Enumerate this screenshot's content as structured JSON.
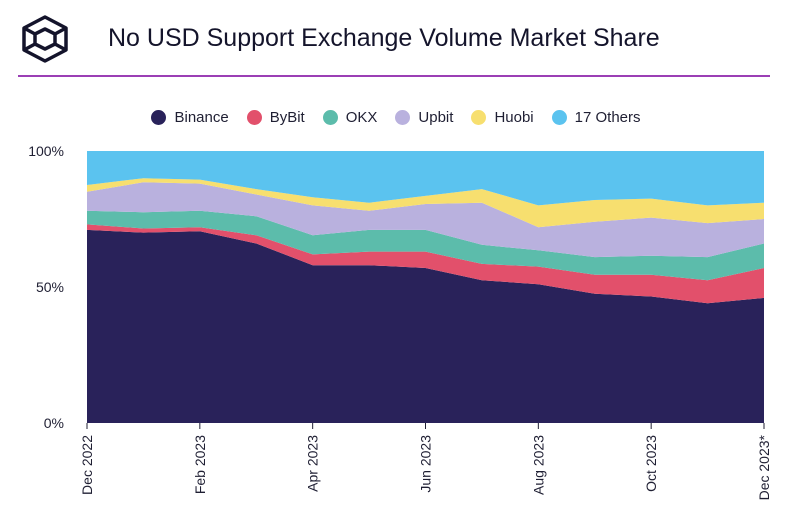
{
  "header": {
    "title": "No USD Support Exchange Volume Market Share",
    "logo_icon": "cube-logo-icon"
  },
  "colors": {
    "accent_line": "#9b3fb5"
  },
  "chart_data": {
    "type": "area",
    "stacked": true,
    "title": "No USD Support Exchange Volume Market Share",
    "x": [
      "Dec 2022",
      "Jan 2023",
      "Feb 2023",
      "Mar 2023",
      "Apr 2023",
      "May 2023",
      "Jun 2023",
      "Jul 2023",
      "Aug 2023",
      "Sep 2023",
      "Oct 2023",
      "Nov 2023",
      "Dec 2023*"
    ],
    "x_tick_labels": [
      "Dec 2022",
      "Feb 2023",
      "Apr 2023",
      "Jun 2023",
      "Aug 2023",
      "Oct 2023",
      "Dec 2023*"
    ],
    "y_tick_labels": [
      "100%",
      "50%",
      "0%"
    ],
    "ylim": [
      0,
      100
    ],
    "legend_position": "top-center",
    "series": [
      {
        "name": "Binance",
        "color": "#29225a",
        "values": [
          71,
          70,
          70.5,
          66,
          58,
          58,
          57,
          52.5,
          51,
          47.5,
          46.5,
          44,
          46
        ]
      },
      {
        "name": "ByBit",
        "color": "#e2506b",
        "values": [
          2,
          1.5,
          1.5,
          3,
          4,
          5,
          6,
          6,
          6.5,
          7,
          8,
          8.5,
          11
        ]
      },
      {
        "name": "OKX",
        "color": "#5cbcab",
        "values": [
          5,
          6,
          6,
          7,
          7,
          8,
          8,
          7,
          6,
          6.5,
          7,
          8.5,
          9
        ]
      },
      {
        "name": "Upbit",
        "color": "#b9b1de",
        "values": [
          7,
          11,
          10,
          8,
          11,
          7,
          9.5,
          15.5,
          8.5,
          13,
          14,
          12.5,
          9
        ]
      },
      {
        "name": "Huobi",
        "color": "#f7df6f",
        "values": [
          2.5,
          1.5,
          1.5,
          2,
          3,
          3,
          3,
          5,
          8,
          8,
          7,
          6.5,
          6
        ]
      },
      {
        "name": "17 Others",
        "color": "#5bc3ef",
        "values": [
          12.5,
          10,
          10.5,
          14,
          17,
          19,
          16.5,
          14,
          20,
          18,
          17.5,
          20,
          19
        ]
      }
    ]
  }
}
